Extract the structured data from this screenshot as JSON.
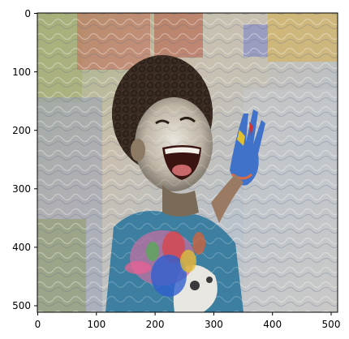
{
  "figure": {
    "image_description_name": "stylized-portrait",
    "x_ticks": [
      "0",
      "100",
      "200",
      "300",
      "400",
      "500"
    ],
    "y_ticks": [
      "0",
      "100",
      "200",
      "300",
      "400",
      "500"
    ],
    "x_range": [
      0,
      512
    ],
    "y_range": [
      0,
      512
    ]
  }
}
